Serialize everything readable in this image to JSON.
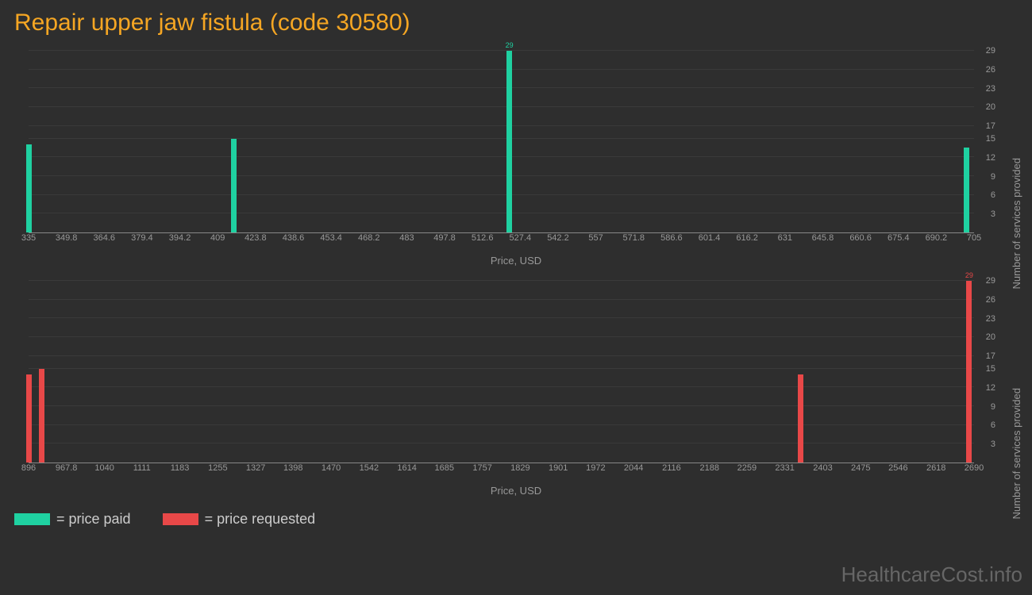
{
  "title": "Repair upper jaw fistula (code 30580)",
  "colors": {
    "background": "#2e2e2e",
    "title": "#f5a623",
    "axis_text": "#999999",
    "grid": "#3a3a3a",
    "bar_paid": "#1fd1a1",
    "bar_requested": "#e84848",
    "legend_text": "#cccccc",
    "watermark": "#666666"
  },
  "chart1": {
    "type": "bar",
    "bar_color": "#1fd1a1",
    "xlabel": "Price, USD",
    "ylabel": "Number of services provided",
    "xmin": 335,
    "xmax": 705,
    "ymin": 0,
    "ymax": 29,
    "xticks": [
      335,
      349.8,
      364.6,
      379.4,
      394.2,
      409,
      423.8,
      438.6,
      453.4,
      468.2,
      483,
      497.8,
      512.6,
      527.4,
      542.2,
      557,
      571.8,
      586.6,
      601.4,
      616.2,
      631,
      645.8,
      660.6,
      675.4,
      690.2,
      705
    ],
    "yticks": [
      3,
      6,
      9,
      12,
      15,
      17,
      20,
      23,
      26,
      29
    ],
    "bars": [
      {
        "x": 335,
        "y": 14
      },
      {
        "x": 415,
        "y": 15
      },
      {
        "x": 523,
        "y": 29,
        "label": "29"
      },
      {
        "x": 702,
        "y": 13.5
      }
    ]
  },
  "chart2": {
    "type": "bar",
    "bar_color": "#e84848",
    "xlabel": "Price, USD",
    "ylabel": "Number of services provided",
    "xmin": 896,
    "xmax": 2690,
    "ymin": 0,
    "ymax": 29,
    "xticks": [
      896,
      967.8,
      1040,
      1111,
      1183,
      1255,
      1327,
      1398,
      1470,
      1542,
      1614,
      1685,
      1757,
      1829,
      1901,
      1972,
      2044,
      2116,
      2188,
      2259,
      2331,
      2403,
      2475,
      2546,
      2618,
      2690
    ],
    "yticks": [
      3,
      6,
      9,
      12,
      15,
      17,
      20,
      23,
      26,
      29
    ],
    "bars": [
      {
        "x": 896,
        "y": 14
      },
      {
        "x": 920,
        "y": 15
      },
      {
        "x": 2360,
        "y": 14
      },
      {
        "x": 2680,
        "y": 29,
        "label": "29"
      }
    ]
  },
  "legend": {
    "paid": "= price paid",
    "requested": "= price requested"
  },
  "watermark": "HealthcareCost.info"
}
